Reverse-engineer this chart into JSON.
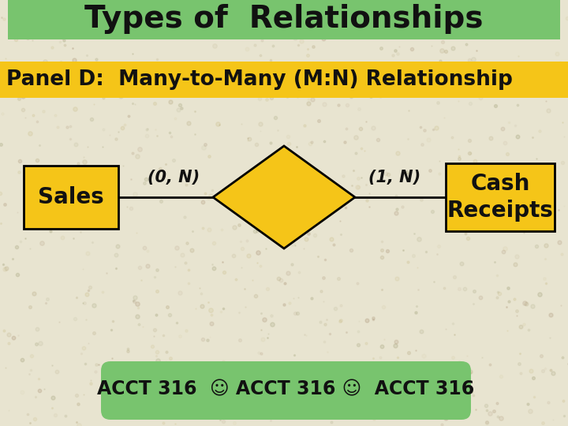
{
  "title": "Types of  Relationships",
  "subtitle": "Panel D:  Many-to-Many (M:N) Relationship",
  "background_color": "#e8e4d0",
  "title_bg_color": "#78c46e",
  "subtitle_bg_color": "#f5c518",
  "entity_color": "#f5c518",
  "diamond_color": "#f5c518",
  "entity1_label": "Sales",
  "entity2_label": "Cash\nReceipts",
  "left_cardinality": "(0, N)",
  "right_cardinality": "(1, N)",
  "footer_bg_color": "#78c46e",
  "font_color": "#111111",
  "title_fontsize": 28,
  "subtitle_fontsize": 19,
  "entity_fontsize": 20,
  "cardinality_fontsize": 15,
  "footer_fontsize": 17
}
